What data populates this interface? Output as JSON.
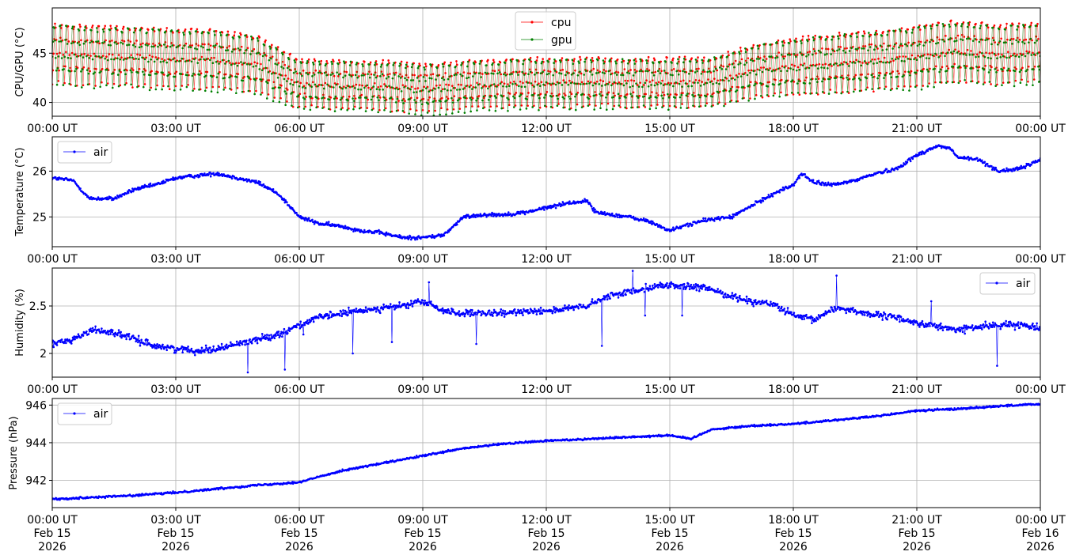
{
  "chart_data": [
    {
      "type": "line",
      "ylabel": "CPU/GPU (°C)",
      "ylim": [
        38.6,
        49.6
      ],
      "yticks": [
        40,
        45
      ],
      "grid": true,
      "legend_position": "top-center",
      "x_unit": "hours since 00:00 UT Feb 15 2026",
      "x_tick_labels": [
        "00:00 UT",
        "03:00 UT",
        "06:00 UT",
        "09:00 UT",
        "12:00 UT",
        "15:00 UT",
        "18:00 UT",
        "21:00 UT",
        "00:00 UT"
      ],
      "series": [
        {
          "name": "cpu",
          "color": "#ff0000",
          "marker": "dot",
          "x": [
            0,
            1,
            2,
            3,
            4,
            5,
            6,
            7,
            8,
            9,
            10,
            11,
            12,
            13,
            14,
            15,
            16,
            17,
            18,
            19,
            20,
            21,
            22,
            23,
            24
          ],
          "baseline": [
            45.3,
            45.1,
            45.0,
            44.8,
            44.7,
            44.2,
            42.2,
            42.0,
            42.0,
            41.7,
            42.0,
            42.2,
            42.3,
            42.3,
            42.3,
            42.3,
            42.4,
            43.5,
            44.0,
            44.3,
            44.6,
            45.0,
            45.6,
            45.2,
            45.4
          ],
          "amplitude": [
            3.4,
            3.4,
            3.4,
            3.4,
            3.4,
            3.2,
            2.8,
            2.8,
            2.8,
            2.8,
            2.8,
            2.8,
            2.8,
            2.8,
            2.8,
            2.8,
            2.8,
            3.0,
            3.2,
            3.4,
            3.4,
            3.5,
            3.5,
            3.4,
            3.4
          ]
        },
        {
          "name": "gpu",
          "color": "#008000",
          "marker": "dot",
          "x": [
            0,
            1,
            2,
            3,
            4,
            5,
            6,
            7,
            8,
            9,
            10,
            11,
            12,
            13,
            14,
            15,
            16,
            17,
            18,
            19,
            20,
            21,
            22,
            23,
            24
          ],
          "baseline": [
            45.1,
            44.9,
            44.8,
            44.6,
            44.5,
            44.0,
            42.0,
            41.9,
            41.8,
            41.5,
            41.8,
            42.0,
            42.1,
            42.1,
            42.1,
            42.1,
            42.2,
            43.3,
            43.8,
            44.1,
            44.4,
            44.8,
            45.4,
            45.0,
            45.2
          ],
          "amplitude": [
            3.4,
            3.4,
            3.4,
            3.4,
            3.4,
            3.2,
            2.8,
            2.8,
            2.8,
            2.8,
            2.8,
            2.8,
            2.8,
            2.8,
            2.8,
            2.8,
            2.8,
            3.0,
            3.2,
            3.4,
            3.4,
            3.5,
            3.5,
            3.4,
            3.4
          ]
        }
      ]
    },
    {
      "type": "line",
      "ylabel": "Temperature (°C)",
      "ylim": [
        24.35,
        26.75
      ],
      "yticks": [
        25,
        26
      ],
      "grid": true,
      "legend_position": "top-left",
      "x_tick_labels": [
        "00:00 UT",
        "03:00 UT",
        "06:00 UT",
        "09:00 UT",
        "12:00 UT",
        "15:00 UT",
        "18:00 UT",
        "21:00 UT",
        "00:00 UT"
      ],
      "series": [
        {
          "name": "air",
          "color": "#0000ff",
          "marker": "dot",
          "x": [
            0,
            0.5,
            0.9,
            1.5,
            2,
            2.5,
            3,
            3.5,
            4,
            4.5,
            5,
            5.5,
            6,
            6.5,
            7,
            7.5,
            8,
            8.5,
            9,
            9.5,
            10,
            10.5,
            11,
            11.5,
            12,
            12.5,
            13,
            13.2,
            14,
            14.5,
            15,
            15.5,
            16,
            16.5,
            17,
            17.5,
            18,
            18.2,
            18.5,
            19,
            19.5,
            20,
            20.5,
            21,
            21.5,
            21.8,
            22,
            22.5,
            23,
            23.5,
            24
          ],
          "y": [
            25.85,
            25.8,
            25.4,
            25.4,
            25.6,
            25.7,
            25.85,
            25.9,
            25.95,
            25.85,
            25.75,
            25.5,
            25.0,
            24.85,
            24.8,
            24.7,
            24.65,
            24.55,
            24.55,
            24.6,
            25.0,
            25.05,
            25.05,
            25.1,
            25.2,
            25.3,
            25.35,
            25.1,
            25.0,
            24.9,
            24.7,
            24.85,
            24.95,
            25.0,
            25.25,
            25.5,
            25.7,
            25.95,
            25.75,
            25.7,
            25.8,
            25.95,
            26.05,
            26.35,
            26.55,
            26.5,
            26.3,
            26.25,
            26.0,
            26.05,
            26.25
          ]
        }
      ]
    },
    {
      "type": "line",
      "ylabel": "Humidity (%)",
      "ylim": [
        1.75,
        2.9
      ],
      "yticks": [
        2.0,
        2.5
      ],
      "grid": true,
      "legend_position": "top-right",
      "x_tick_labels": [
        "00:00 UT",
        "03:00 UT",
        "06:00 UT",
        "09:00 UT",
        "12:00 UT",
        "15:00 UT",
        "18:00 UT",
        "21:00 UT",
        "00:00 UT"
      ],
      "series": [
        {
          "name": "air",
          "color": "#0000ff",
          "marker": "dot",
          "x": [
            0,
            0.5,
            1,
            1.5,
            2,
            2.5,
            3,
            3.5,
            4,
            4.5,
            5,
            5.5,
            6,
            6.5,
            7,
            7.5,
            8,
            8.5,
            9,
            9.5,
            10,
            10.5,
            11,
            11.5,
            12,
            12.5,
            13,
            13.5,
            14,
            14.5,
            15,
            15.5,
            16,
            16.5,
            17,
            17.5,
            18,
            18.5,
            19,
            19.5,
            20,
            20.5,
            21,
            21.5,
            22,
            22.5,
            23,
            23.5,
            24
          ],
          "y": [
            2.1,
            2.15,
            2.25,
            2.22,
            2.15,
            2.08,
            2.05,
            2.03,
            2.05,
            2.1,
            2.15,
            2.2,
            2.3,
            2.38,
            2.42,
            2.45,
            2.48,
            2.5,
            2.55,
            2.45,
            2.42,
            2.42,
            2.42,
            2.45,
            2.45,
            2.47,
            2.5,
            2.6,
            2.65,
            2.7,
            2.72,
            2.7,
            2.68,
            2.6,
            2.55,
            2.52,
            2.4,
            2.35,
            2.48,
            2.45,
            2.4,
            2.38,
            2.32,
            2.28,
            2.25,
            2.28,
            2.3,
            2.3,
            2.28
          ],
          "spikes": [
            [
              4.75,
              1.8
            ],
            [
              5.65,
              1.83
            ],
            [
              6.1,
              2.2
            ],
            [
              7.3,
              2.0
            ],
            [
              8.25,
              2.12
            ],
            [
              9.15,
              2.75
            ],
            [
              10.3,
              2.1
            ],
            [
              13.35,
              2.08
            ],
            [
              14.1,
              2.87
            ],
            [
              14.4,
              2.4
            ],
            [
              15.3,
              2.4
            ],
            [
              19.05,
              2.82
            ],
            [
              21.35,
              2.55
            ],
            [
              22.95,
              1.87
            ]
          ]
        }
      ]
    },
    {
      "type": "line",
      "ylabel": "Pressure (hPa)",
      "ylim": [
        940.55,
        946.35
      ],
      "yticks": [
        942,
        944,
        946
      ],
      "grid": true,
      "legend_position": "top-left",
      "x_tick_labels": [
        "00:00 UT\nFeb 15\n2026",
        "03:00 UT\nFeb 15\n2026",
        "06:00 UT\nFeb 15\n2026",
        "09:00 UT\nFeb 15\n2026",
        "12:00 UT\nFeb 15\n2026",
        "15:00 UT\nFeb 15\n2026",
        "18:00 UT\nFeb 15\n2026",
        "21:00 UT\nFeb 15\n2026",
        "00:00 UT\nFeb 16\n2026"
      ],
      "series": [
        {
          "name": "air",
          "color": "#0000ff",
          "marker": "dot",
          "x": [
            0,
            1,
            2,
            3,
            4,
            5,
            6,
            7,
            8,
            9,
            10,
            11,
            12,
            13,
            14,
            15,
            15.5,
            16,
            17,
            18,
            19,
            20,
            21,
            22,
            23,
            24
          ],
          "y": [
            941.0,
            941.1,
            941.2,
            941.35,
            941.55,
            941.75,
            941.9,
            942.5,
            942.9,
            943.3,
            943.7,
            943.95,
            944.1,
            944.2,
            944.3,
            944.4,
            944.2,
            944.7,
            944.9,
            945.0,
            945.2,
            945.4,
            945.7,
            945.8,
            945.95,
            946.05
          ]
        }
      ]
    }
  ]
}
